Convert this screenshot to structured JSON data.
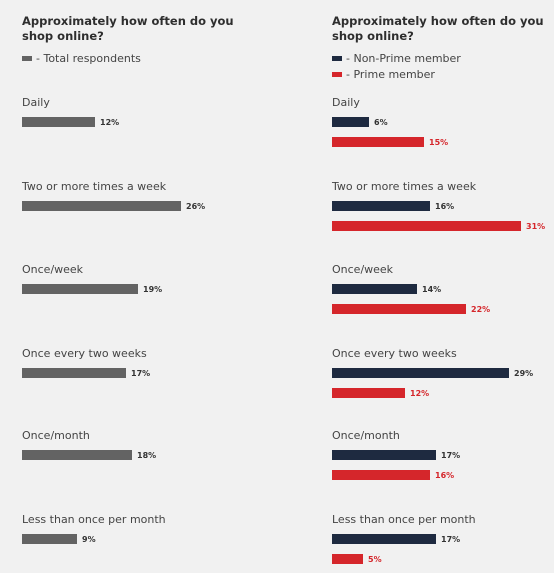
{
  "colors": {
    "total": "#636363",
    "non_prime": "#1e2a40",
    "prime": "#d5262b"
  },
  "chart_data": [
    {
      "type": "bar",
      "orientation": "horizontal",
      "title": "Approximately how often do you shop online?",
      "legend": [
        {
          "name": "- Total respondents",
          "color": "#636363"
        }
      ],
      "categories": [
        "Daily",
        "Two or more times a week",
        "Once/week",
        "Once every two weeks",
        "Once/month",
        "Less than once per month"
      ],
      "series": [
        {
          "name": "Total respondents",
          "color": "#636363",
          "values": [
            12,
            26,
            19,
            17,
            18,
            9
          ],
          "labels": [
            "12%",
            "26%",
            "19%",
            "17%",
            "18%",
            "9%"
          ]
        }
      ]
    },
    {
      "type": "bar",
      "orientation": "horizontal",
      "title": "Approximately how often do you shop online?",
      "legend": [
        {
          "name": "- Non-Prime member",
          "color": "#1e2a40"
        },
        {
          "name": "- Prime member",
          "color": "#d5262b"
        }
      ],
      "categories": [
        "Daily",
        "Two or more times a week",
        "Once/week",
        "Once every two weeks",
        "Once/month",
        "Less than once per month"
      ],
      "series": [
        {
          "name": "Non-Prime member",
          "color": "#1e2a40",
          "values": [
            6,
            16,
            14,
            29,
            17,
            17
          ],
          "labels": [
            "6%",
            "16%",
            "14%",
            "29%",
            "17%",
            "17%"
          ]
        },
        {
          "name": "Prime member",
          "color": "#d5262b",
          "values": [
            15,
            31,
            22,
            12,
            16,
            5
          ],
          "labels": [
            "15%",
            "31%",
            "22%",
            "12%",
            "16%",
            "5%"
          ]
        }
      ]
    }
  ]
}
